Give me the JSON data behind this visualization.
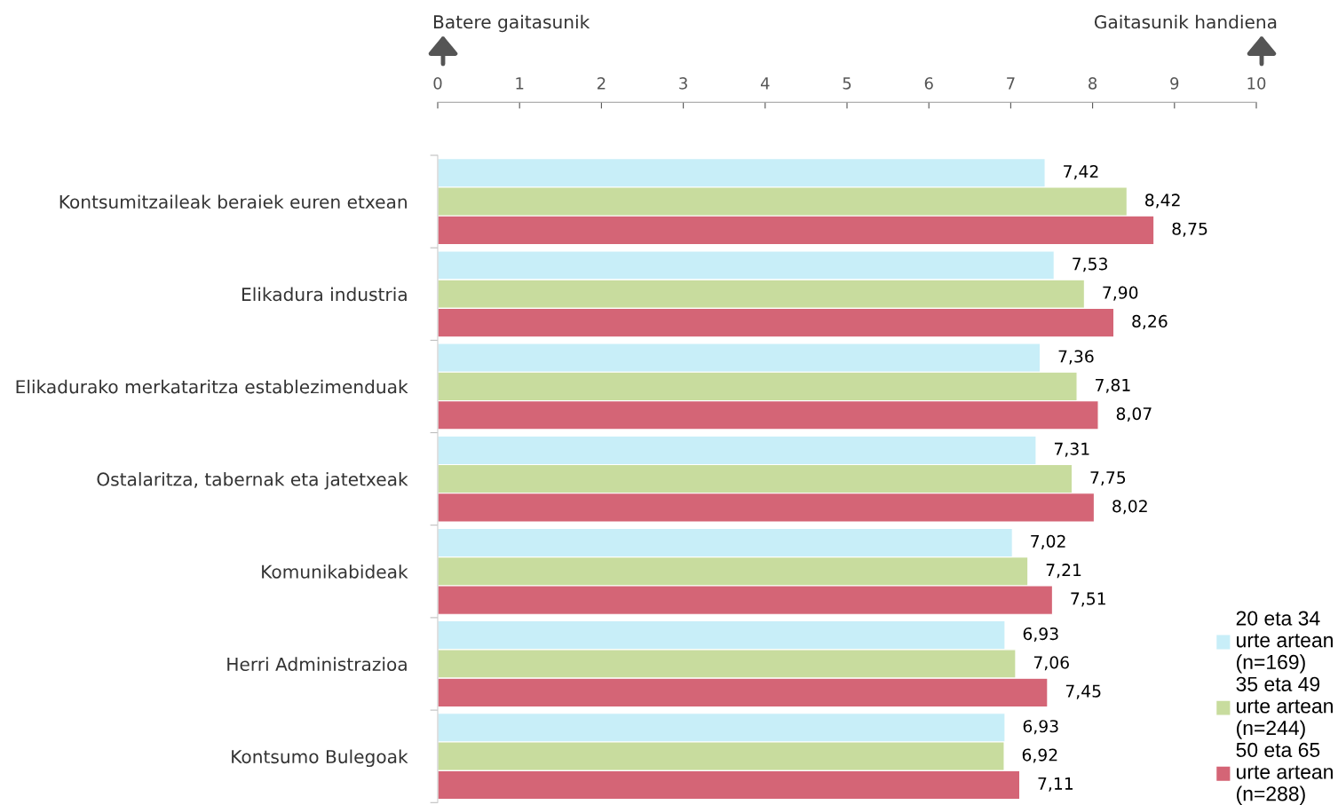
{
  "chart_data": {
    "type": "bar",
    "orientation": "horizontal",
    "categories": [
      "Kontsumitzaileak beraiek euren etxean",
      "Elikadura industria",
      "Elikadurako merkataritza establezimenduak",
      "Ostalaritza, tabernak eta jatetxeak",
      "Komunikabideak",
      "Herri Administrazioa",
      "Kontsumo Bulegoak"
    ],
    "series": [
      {
        "name": "20 eta 34 urte artean (n=169)",
        "color": "#c8eef8",
        "values": [
          7.42,
          7.53,
          7.36,
          7.31,
          7.02,
          6.93,
          6.93
        ],
        "value_labels": [
          "7,42",
          "7,53",
          "7,36",
          "7,31",
          "7,02",
          "6,93",
          "6,93"
        ]
      },
      {
        "name": "35 eta 49 urte artean (n=244)",
        "color": "#c8dc9e",
        "values": [
          8.42,
          7.9,
          7.81,
          7.75,
          7.21,
          7.06,
          6.92
        ],
        "value_labels": [
          "8,42",
          "7,90",
          "7,81",
          "7,75",
          "7,21",
          "7,06",
          "6,92"
        ]
      },
      {
        "name": "50 eta 65 urte artean (n=288)",
        "color": "#d46576",
        "values": [
          8.75,
          8.26,
          8.07,
          8.02,
          7.51,
          7.45,
          7.11
        ],
        "value_labels": [
          "8,75",
          "8,26",
          "8,07",
          "8,02",
          "7,51",
          "7,45",
          "7,11"
        ]
      }
    ],
    "xlim": [
      0,
      10
    ],
    "xticks": [
      0,
      1,
      2,
      3,
      4,
      5,
      6,
      7,
      8,
      9,
      10
    ],
    "grid": false,
    "legend": "bottom right",
    "annotations": [
      "Batere gaitasunik",
      "Gaitasunik handiena"
    ]
  }
}
